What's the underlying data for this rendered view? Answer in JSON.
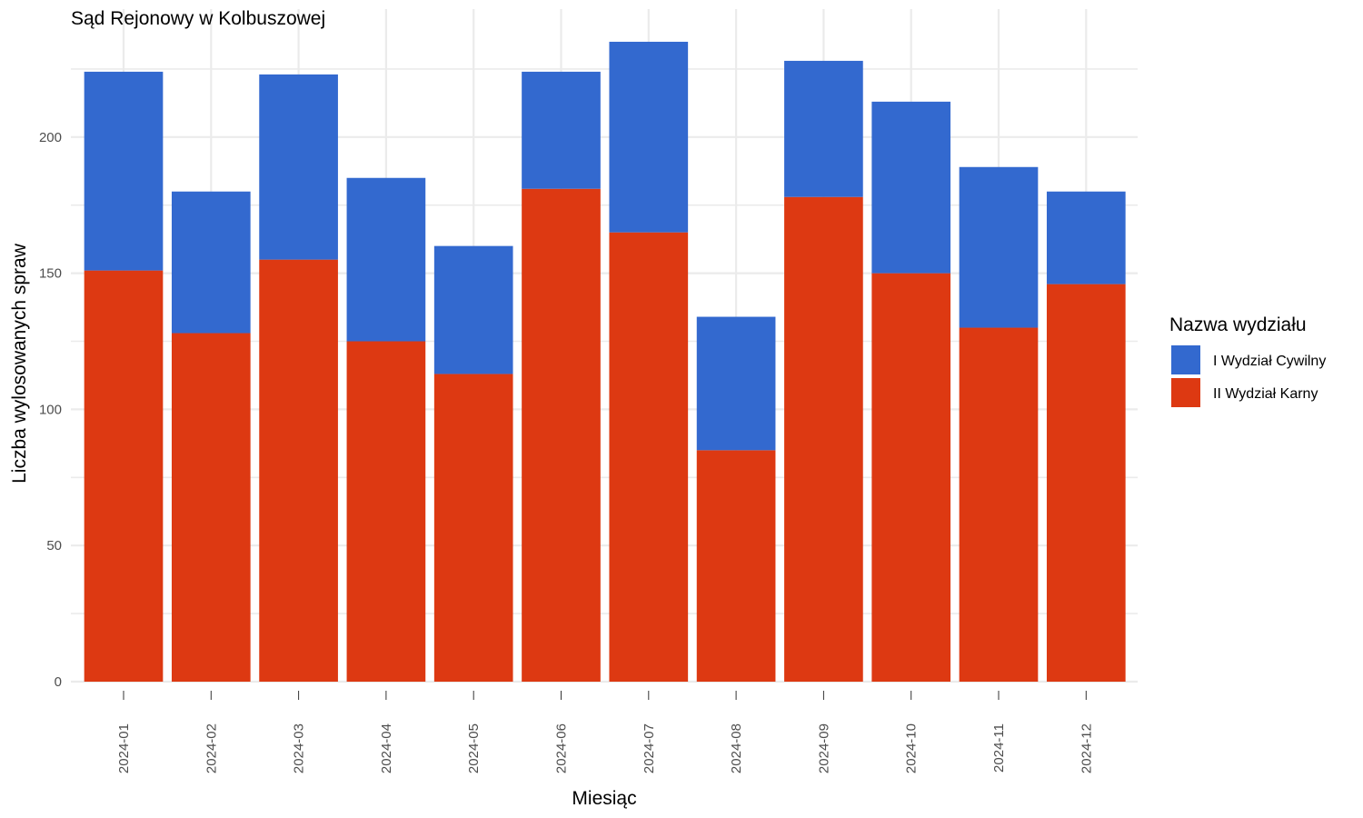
{
  "chart_data": {
    "type": "bar",
    "stacked": true,
    "title": "Sąd Rejonowy w Kolbuszowej",
    "xlabel": "Miesiąc",
    "ylabel": "Liczba wylosowanych spraw",
    "ylim": [
      0,
      247
    ],
    "yticks": [
      0,
      50,
      100,
      150,
      200
    ],
    "grid": true,
    "legend": {
      "title": "Nazwa wydziału",
      "position": "right"
    },
    "categories": [
      "2024-01",
      "2024-02",
      "2024-03",
      "2024-04",
      "2024-05",
      "2024-06",
      "2024-07",
      "2024-08",
      "2024-09",
      "2024-10",
      "2024-11",
      "2024-12"
    ],
    "series": [
      {
        "name": "II Wydział Karny",
        "color": "#dd3912",
        "values": [
          151,
          128,
          155,
          125,
          113,
          181,
          165,
          85,
          178,
          150,
          130,
          146
        ]
      },
      {
        "name": "I Wydział Cywilny",
        "color": "#3369cf",
        "values": [
          73,
          52,
          68,
          60,
          47,
          43,
          70,
          49,
          50,
          63,
          59,
          34
        ]
      }
    ],
    "legend_order": [
      "I Wydział Cywilny",
      "II Wydział Karny"
    ]
  }
}
